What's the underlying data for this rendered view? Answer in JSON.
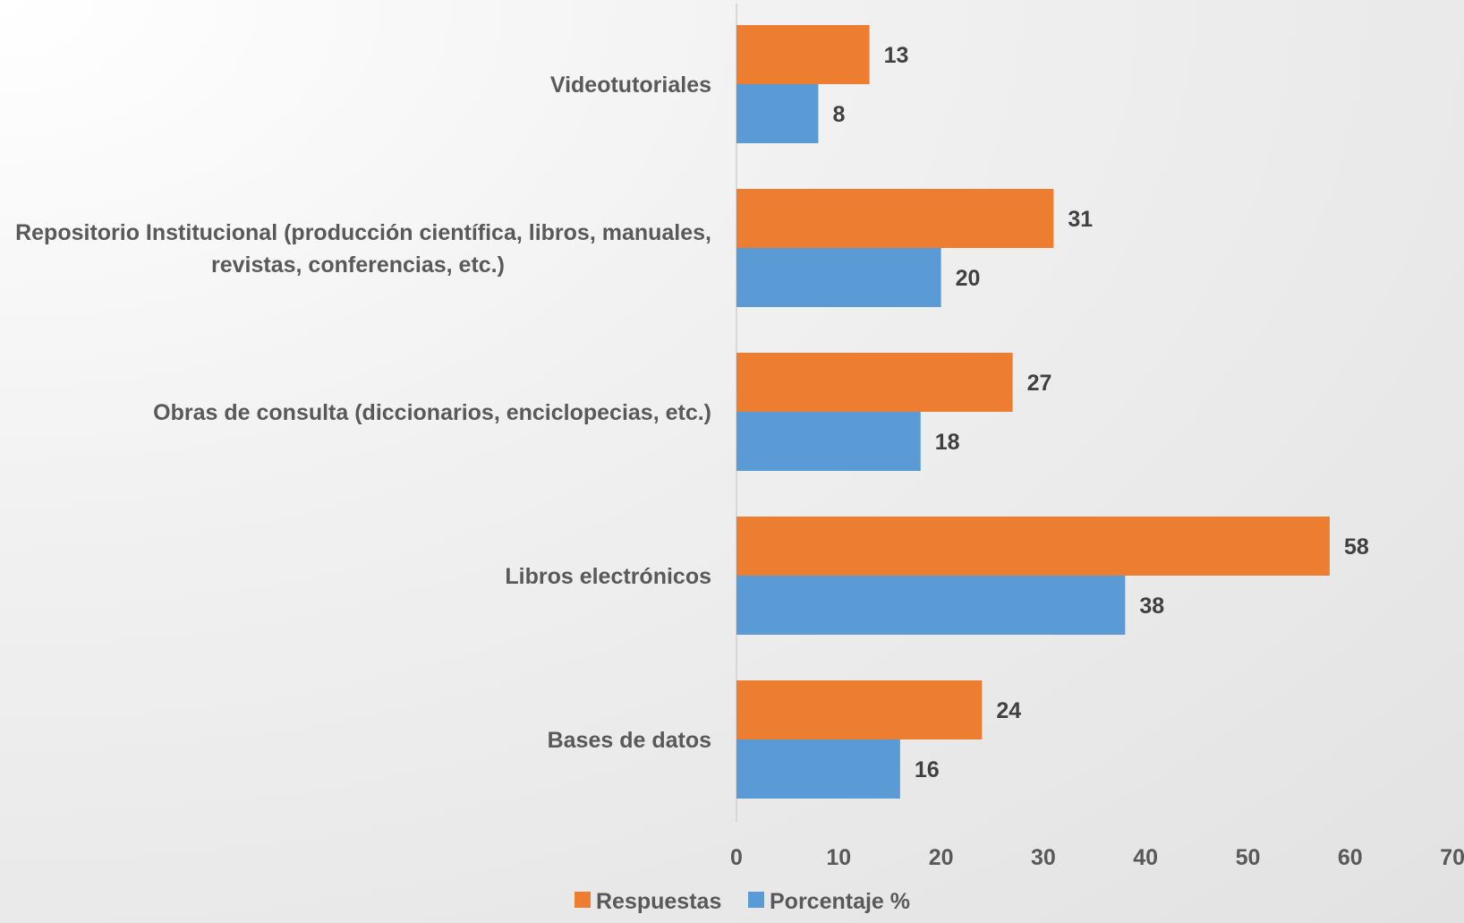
{
  "chart_data": {
    "type": "bar",
    "orientation": "horizontal",
    "categories": [
      [
        "Videotutoriales"
      ],
      [
        "Repositorio Institucional (producción científica, libros, manuales,",
        "revistas, conferencias, etc.)"
      ],
      [
        "Obras de consulta (diccionarios, enciclopecias, etc.)"
      ],
      [
        "Libros electrónicos"
      ],
      [
        "Bases de datos"
      ]
    ],
    "series": [
      {
        "name": "Respuestas",
        "color": "#ED7D31",
        "values": [
          13,
          31,
          27,
          58,
          24
        ]
      },
      {
        "name": "Porcentaje %",
        "color": "#5B9BD5",
        "values": [
          8,
          20,
          18,
          38,
          16
        ]
      }
    ],
    "xlim": [
      0,
      70
    ],
    "xticks": [
      "0",
      "10",
      "20",
      "30",
      "40",
      "50",
      "60",
      "70"
    ],
    "xtick_values": [
      0,
      10,
      20,
      30,
      40,
      50,
      60,
      70
    ],
    "legend_position": "bottom",
    "grid": false,
    "data_labels": true
  }
}
